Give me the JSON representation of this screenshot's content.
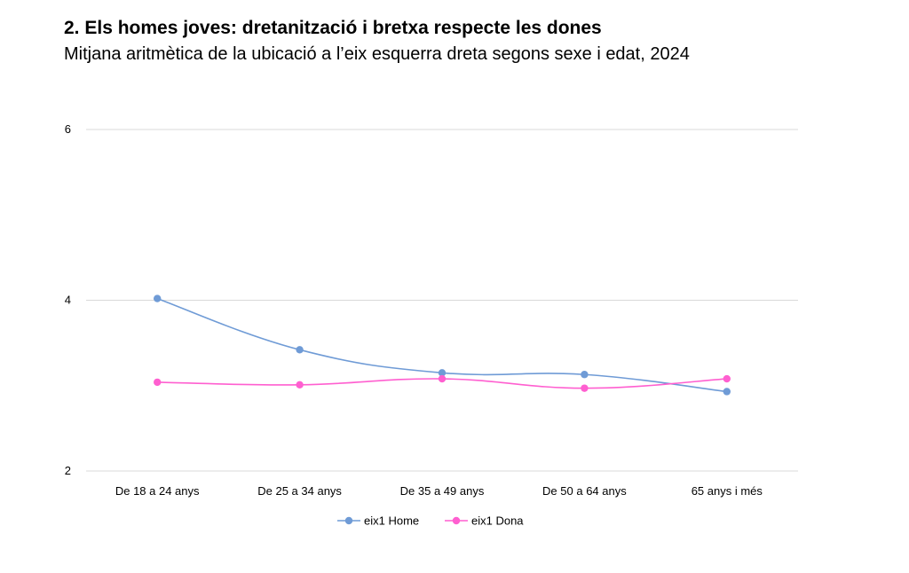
{
  "chart_data": {
    "type": "line",
    "title": "2. Els homes joves: dretanització i bretxa respecte les dones",
    "subtitle": "Mitjana aritmètica de la ubicació a l’eix esquerra dreta segons sexe i edat, 2024",
    "categories": [
      "De 18 a 24 anys",
      "De 25 a 34 anys",
      "De 35 a 49 anys",
      "De 50 a 64 anys",
      "65 anys i més"
    ],
    "series": [
      {
        "name": "eix1 Home",
        "color": "#6f9bd6",
        "values": [
          4.02,
          3.42,
          3.15,
          3.13,
          2.93
        ]
      },
      {
        "name": "eix1 Dona",
        "color": "#ff5fd0",
        "values": [
          3.04,
          3.01,
          3.08,
          2.97,
          3.08
        ]
      }
    ],
    "ylim": [
      2,
      6
    ],
    "yticks": [
      "2",
      "4",
      "6"
    ],
    "grid": true,
    "legend_position": "bottom"
  }
}
